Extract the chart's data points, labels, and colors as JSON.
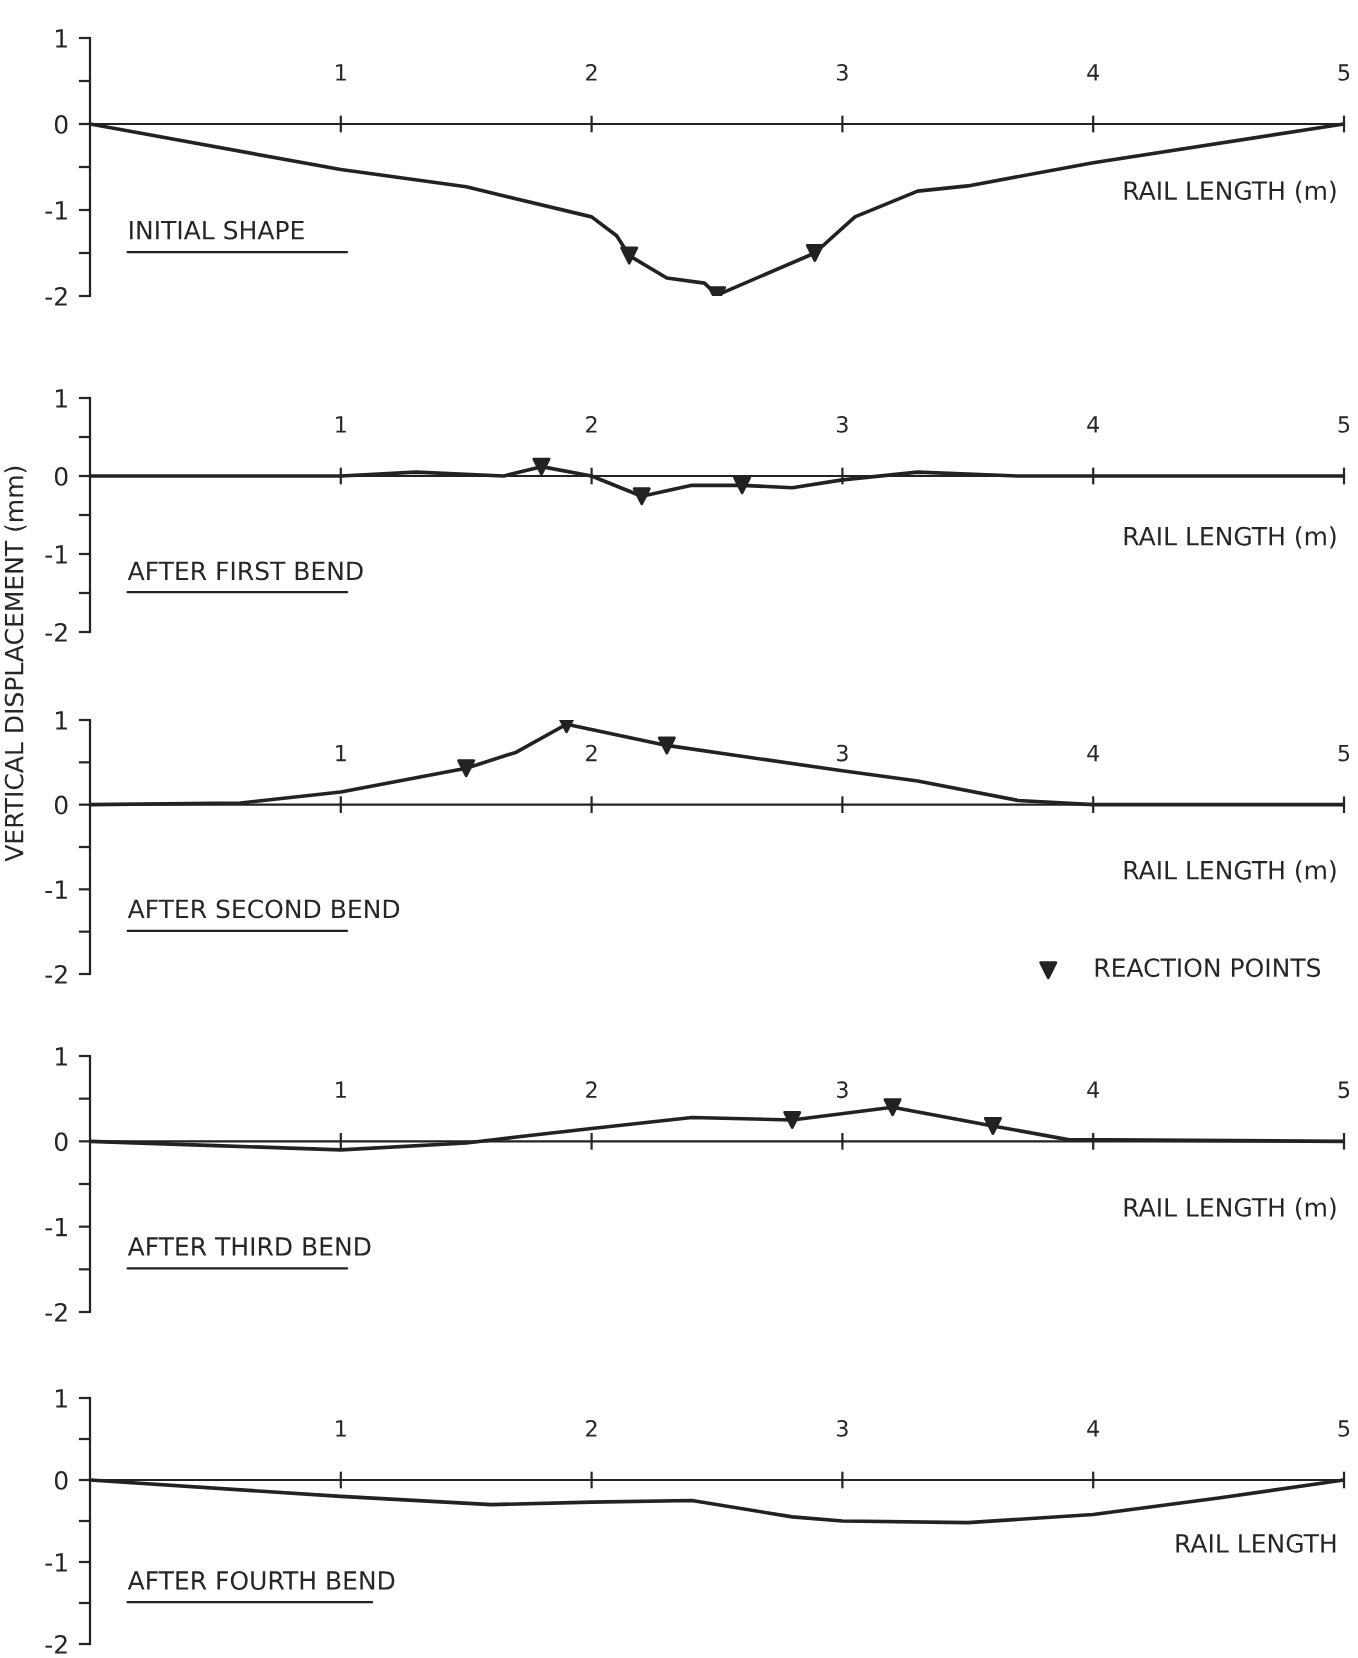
{
  "chart_data": [
    {
      "type": "line",
      "title": "INITIAL SHAPE",
      "xlabel": "RAIL LENGTH (m)",
      "xlim": [
        0,
        5
      ],
      "xticks": [
        1,
        2,
        3,
        4,
        5
      ],
      "ylim": [
        -2,
        1
      ],
      "yticks": [
        -2,
        {
          "value": -1.5,
          "label": null
        },
        -1,
        {
          "value": -0.5,
          "label": null
        },
        0,
        {
          "value": 0.5,
          "label": null
        },
        1
      ],
      "grid": false,
      "series": [
        {
          "color": "#222222",
          "x": [
            0,
            1,
            1.5,
            2.0,
            2.1,
            2.15,
            2.3,
            2.45,
            2.5,
            2.89,
            3.05,
            3.3,
            3.5,
            4.0,
            5
          ],
          "values": [
            0,
            -0.53,
            -0.73,
            -1.08,
            -1.3,
            -1.53,
            -1.79,
            -1.85,
            -1.99,
            -1.5,
            -1.08,
            -0.78,
            -0.72,
            -0.45,
            0
          ]
        },
        {
          "type": "scatter",
          "marker": "triangle",
          "color": "#222222",
          "x": [
            2.15,
            2.5,
            2.89
          ],
          "values": [
            -1.53,
            -1.99,
            -1.5
          ]
        }
      ]
    },
    {
      "type": "line",
      "title": "AFTER FIRST BEND",
      "xlabel": "RAIL LENGTH (m)",
      "xlim": [
        0,
        5
      ],
      "xticks": [
        1,
        2,
        3,
        4,
        5
      ],
      "ylim": [
        -2,
        1
      ],
      "yticks": [
        -2,
        {
          "value": -1.5,
          "label": null
        },
        -1,
        {
          "value": -0.5,
          "label": null
        },
        0,
        {
          "value": 0.5,
          "label": null
        },
        1
      ],
      "grid": false,
      "series": [
        {
          "color": "#222222",
          "x": [
            0,
            1,
            1.3,
            1.65,
            1.8,
            2.0,
            2.2,
            2.4,
            2.6,
            2.8,
            3.0,
            3.3,
            3.7,
            5
          ],
          "values": [
            0,
            0,
            0.05,
            0,
            0.12,
            0,
            -0.26,
            -0.12,
            -0.12,
            -0.15,
            -0.05,
            0.05,
            0,
            0
          ]
        },
        {
          "type": "scatter",
          "marker": "triangle",
          "color": "#222222",
          "x": [
            1.8,
            2.2,
            2.6
          ],
          "values": [
            0.12,
            -0.26,
            -0.12
          ]
        }
      ]
    },
    {
      "type": "line",
      "title": "AFTER SECOND BEND",
      "xlabel": "RAIL LENGTH (m)",
      "ylabel": "VERTICAL DISPLACEMENT (mm)",
      "legend": "bottom right",
      "xlim": [
        0,
        5
      ],
      "xticks": [
        1,
        2,
        3,
        4,
        5
      ],
      "ylim": [
        -2,
        1
      ],
      "yticks": [
        -2,
        {
          "value": -1.5,
          "label": null
        },
        -1,
        {
          "value": -0.5,
          "label": null
        },
        0,
        {
          "value": 0.5,
          "label": null
        },
        1
      ],
      "grid": false,
      "series": [
        {
          "color": "#222222",
          "x": [
            0,
            0.6,
            1,
            1.5,
            1.7,
            1.9,
            2.3,
            3.0,
            3.3,
            3.7,
            4,
            5
          ],
          "values": [
            0,
            0.02,
            0.15,
            0.43,
            0.62,
            0.95,
            0.7,
            0.4,
            0.28,
            0.05,
            0,
            0
          ]
        },
        {
          "type": "scatter",
          "name": "REACTION POINTS",
          "marker": "triangle",
          "color": "#222222",
          "x": [
            1.5,
            1.9,
            2.3
          ],
          "values": [
            0.43,
            0.95,
            0.7
          ]
        }
      ]
    },
    {
      "type": "line",
      "title": "AFTER THIRD BEND",
      "xlabel": "RAIL LENGTH (m)",
      "xlim": [
        0,
        5
      ],
      "xticks": [
        1,
        2,
        3,
        4,
        5
      ],
      "ylim": [
        -2,
        1
      ],
      "yticks": [
        -2,
        {
          "value": -1.5,
          "label": null
        },
        -1,
        {
          "value": -0.5,
          "label": null
        },
        0,
        {
          "value": 0.5,
          "label": null
        },
        1
      ],
      "grid": false,
      "series": [
        {
          "color": "#222222",
          "x": [
            0,
            0.5,
            1,
            1.5,
            1.7,
            2,
            2.4,
            2.8,
            3.2,
            3.6,
            3.9,
            5
          ],
          "values": [
            0,
            -0.05,
            -0.1,
            -0.02,
            0.05,
            0.15,
            0.28,
            0.25,
            0.4,
            0.18,
            0.02,
            0
          ]
        },
        {
          "type": "scatter",
          "marker": "triangle",
          "color": "#222222",
          "x": [
            2.8,
            3.2,
            3.6
          ],
          "values": [
            0.25,
            0.4,
            0.18
          ]
        }
      ]
    },
    {
      "type": "line",
      "title": "AFTER FOURTH BEND",
      "xlabel": "RAIL LENGTH",
      "xlim": [
        0,
        5
      ],
      "xticks": [
        1,
        2,
        3,
        4,
        5
      ],
      "ylim": [
        -2,
        1
      ],
      "yticks": [
        -2,
        {
          "value": -1.5,
          "label": null
        },
        -1,
        {
          "value": -0.5,
          "label": null
        },
        0,
        {
          "value": 0.5,
          "label": null
        },
        1
      ],
      "grid": false,
      "series": [
        {
          "color": "#222222",
          "x": [
            0,
            1,
            1.6,
            2,
            2.4,
            2.8,
            3,
            3.5,
            4,
            4.5,
            5
          ],
          "values": [
            0,
            -0.2,
            -0.3,
            -0.27,
            -0.25,
            -0.45,
            -0.5,
            -0.52,
            -0.42,
            -0.22,
            0
          ]
        }
      ]
    }
  ]
}
